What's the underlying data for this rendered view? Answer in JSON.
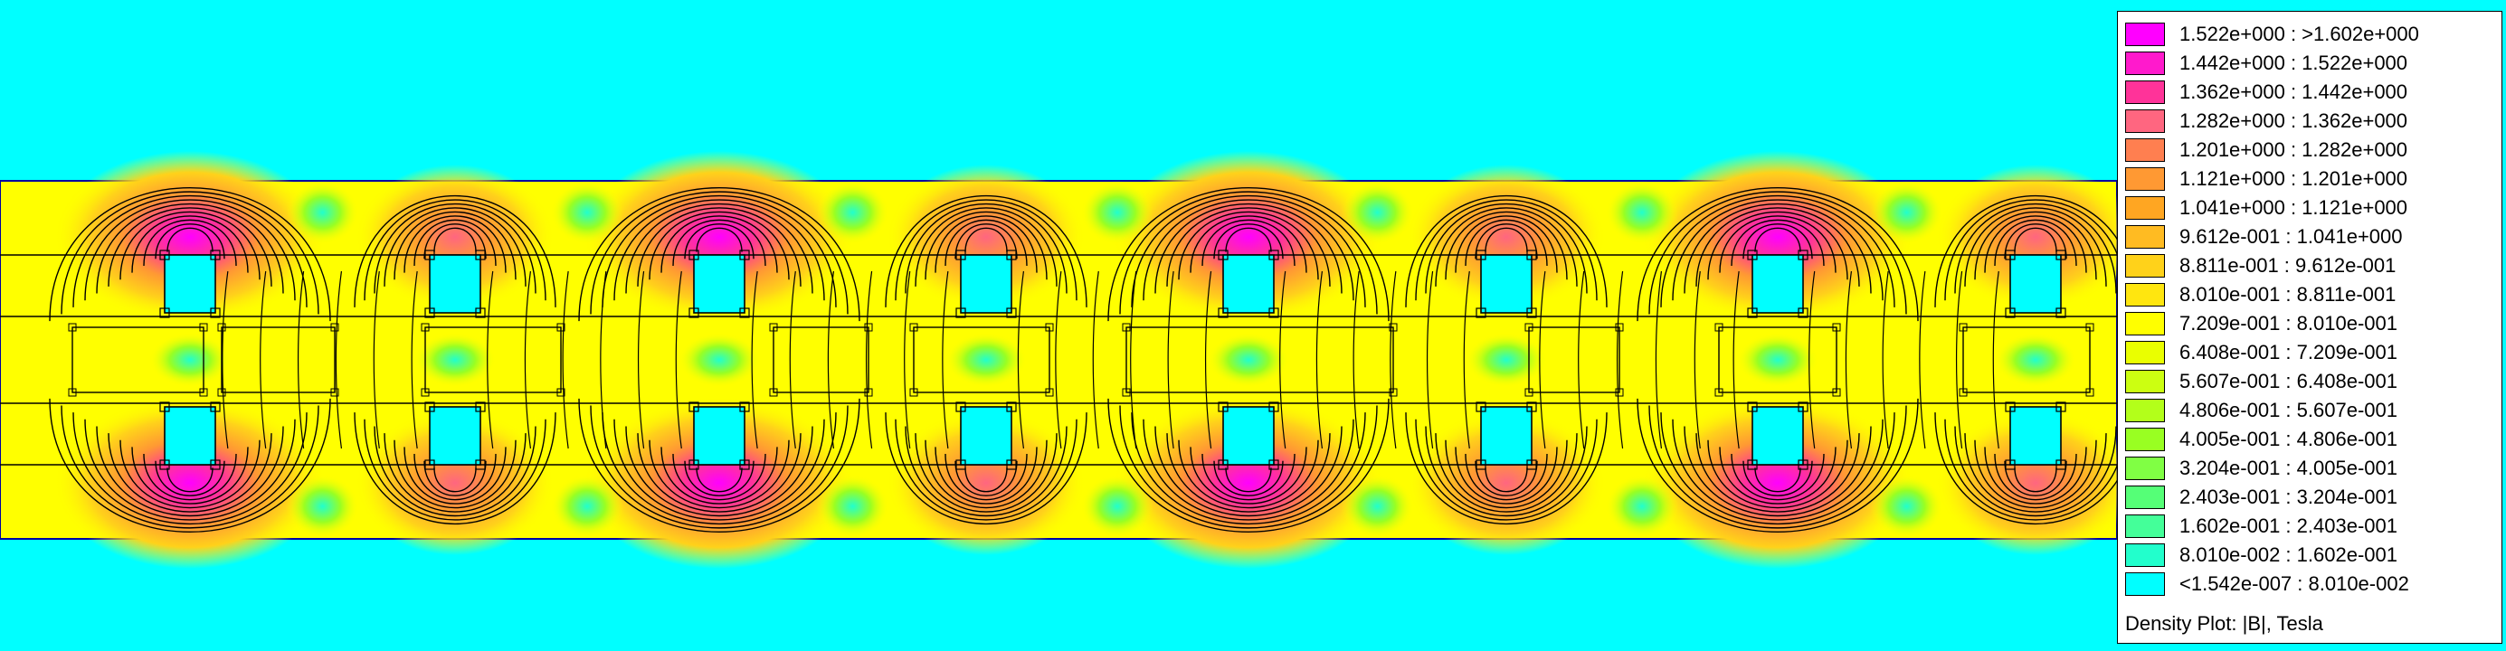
{
  "colors": {
    "background": "#00ffff",
    "band_field": "#ffff00",
    "contour": "#000000",
    "band_edge": "#0000a0"
  },
  "legend": {
    "caption": "Density Plot: |B|, Tesla",
    "entries": [
      {
        "label": "1.522e+000 : >1.602e+000",
        "color": "#ff00ff"
      },
      {
        "label": "1.442e+000 : 1.522e+000",
        "color": "#ff1acc"
      },
      {
        "label": "1.362e+000 : 1.442e+000",
        "color": "#ff3399"
      },
      {
        "label": "1.282e+000 : 1.362e+000",
        "color": "#ff6680"
      },
      {
        "label": "1.201e+000 : 1.282e+000",
        "color": "#ff7f50"
      },
      {
        "label": "1.121e+000 : 1.201e+000",
        "color": "#ff9933"
      },
      {
        "label": "1.041e+000 : 1.121e+000",
        "color": "#ffa622"
      },
      {
        "label": "9.612e-001 : 1.041e+000",
        "color": "#ffbb22"
      },
      {
        "label": "8.811e-001 : 9.612e-001",
        "color": "#ffd21a"
      },
      {
        "label": "8.010e-001 : 8.811e-001",
        "color": "#ffe60f"
      },
      {
        "label": "7.209e-001 : 8.010e-001",
        "color": "#ffff00"
      },
      {
        "label": "6.408e-001 : 7.209e-001",
        "color": "#eaff00"
      },
      {
        "label": "5.607e-001 : 6.408e-001",
        "color": "#ccff11"
      },
      {
        "label": "4.806e-001 : 5.607e-001",
        "color": "#b3ff1a"
      },
      {
        "label": "4.005e-001 : 4.806e-001",
        "color": "#99ff22"
      },
      {
        "label": "3.204e-001 : 4.005e-001",
        "color": "#80ff44"
      },
      {
        "label": "2.403e-001 : 3.204e-001",
        "color": "#55ff77"
      },
      {
        "label": "1.602e-001 : 2.403e-001",
        "color": "#44ff99"
      },
      {
        "label": "8.010e-002 : 1.602e-001",
        "color": "#22ffcc"
      },
      {
        "label": "<1.542e-007 : 8.010e-002",
        "color": "#00ffff"
      }
    ]
  }
}
